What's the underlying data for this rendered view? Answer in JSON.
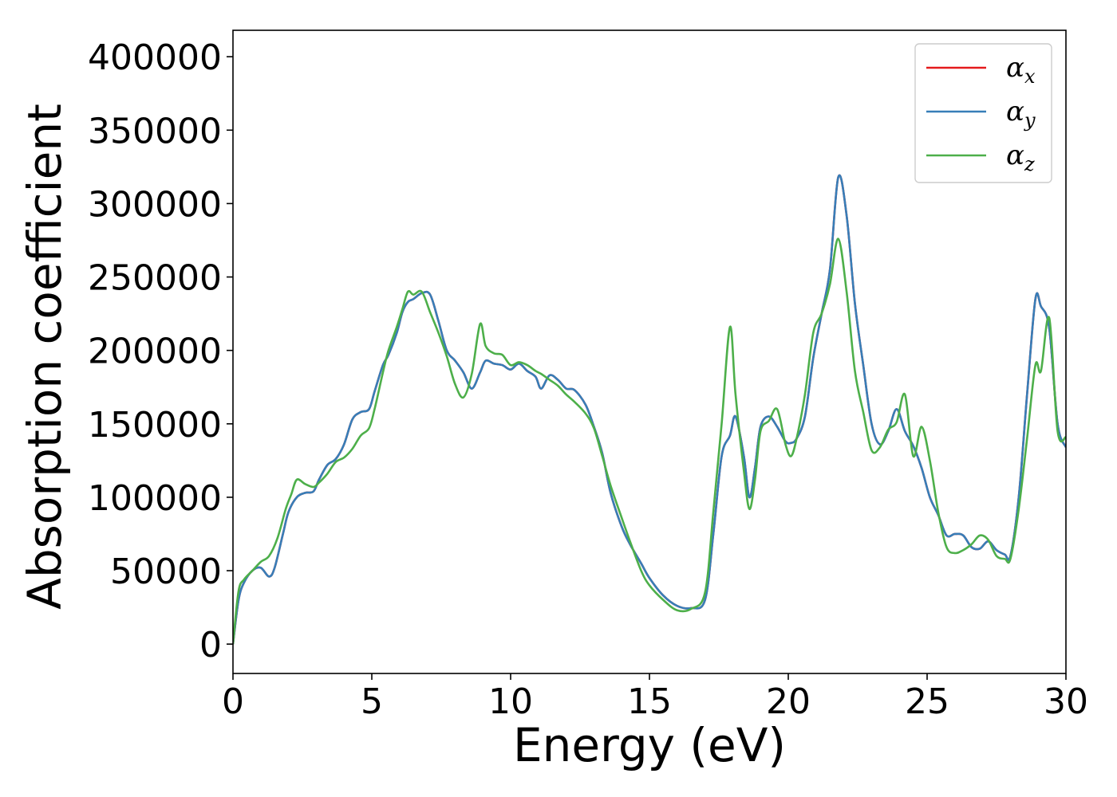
{
  "chart_data": {
    "type": "line",
    "xlabel": "Energy (eV)",
    "ylabel": "Absorption coefficient",
    "xlim": [
      0,
      30
    ],
    "ylim": [
      -20000,
      418000
    ],
    "xticks": [
      0,
      5,
      10,
      15,
      20,
      25,
      30
    ],
    "xtick_labels": [
      "0",
      "5",
      "10",
      "15",
      "20",
      "25",
      "30"
    ],
    "yticks": [
      0,
      50000,
      100000,
      150000,
      200000,
      250000,
      300000,
      350000,
      400000
    ],
    "ytick_labels": [
      "0",
      "50000",
      "100000",
      "150000",
      "200000",
      "250000",
      "300000",
      "350000",
      "400000"
    ],
    "grid": false,
    "legend_position": "top-right",
    "colors": {
      "alpha_x": "#e41a1c",
      "alpha_y": "#377eb8",
      "alpha_z": "#4daf4a",
      "axes": "#000000"
    },
    "series": [
      {
        "name": "α_x",
        "symbol": "α",
        "subscript": "x",
        "color": "#e41a1c",
        "x": [
          0,
          0.2,
          0.4,
          0.7,
          1.0,
          1.3,
          1.5,
          1.8,
          2.0,
          2.3,
          2.6,
          2.9,
          3.1,
          3.4,
          3.7,
          4.0,
          4.3,
          4.6,
          4.9,
          5.1,
          5.4,
          5.6,
          5.9,
          6.1,
          6.3,
          6.5,
          6.8,
          7.1,
          7.4,
          7.7,
          8.0,
          8.3,
          8.6,
          8.9,
          9.1,
          9.4,
          9.7,
          10.0,
          10.3,
          10.6,
          10.9,
          11.1,
          11.4,
          11.7,
          12.0,
          12.3,
          12.7,
          13.0,
          13.3,
          13.6,
          14.0,
          14.3,
          14.7,
          15.0,
          15.5,
          16.0,
          16.5,
          17.0,
          17.3,
          17.6,
          17.9,
          18.1,
          18.4,
          18.6,
          18.8,
          19.0,
          19.3,
          19.6,
          19.9,
          20.1,
          20.3,
          20.6,
          20.9,
          21.2,
          21.5,
          21.8,
          22.1,
          22.4,
          22.7,
          23.0,
          23.3,
          23.6,
          23.9,
          24.2,
          24.5,
          24.8,
          25.1,
          25.4,
          25.7,
          26.0,
          26.3,
          26.6,
          26.9,
          27.2,
          27.5,
          27.8,
          28.0,
          28.3,
          28.6,
          28.9,
          29.1,
          29.4,
          29.7,
          30.0
        ],
        "y": [
          0,
          30000,
          42000,
          50000,
          52000,
          46000,
          52000,
          75000,
          90000,
          100000,
          103000,
          104000,
          112000,
          122000,
          126000,
          136000,
          153000,
          158000,
          160000,
          172000,
          190000,
          197000,
          212000,
          226000,
          233000,
          235000,
          239000,
          238000,
          220000,
          200000,
          193000,
          185000,
          174000,
          185000,
          193000,
          191000,
          190000,
          187000,
          191000,
          186000,
          182000,
          174000,
          183000,
          180000,
          174000,
          173000,
          163000,
          148000,
          130000,
          103000,
          80000,
          68000,
          55000,
          45000,
          33000,
          26000,
          24500,
          30000,
          75000,
          128000,
          142000,
          155000,
          128000,
          100000,
          120000,
          148000,
          155000,
          148000,
          138000,
          137000,
          140000,
          155000,
          195000,
          225000,
          255000,
          318000,
          292000,
          232000,
          190000,
          150000,
          136000,
          145000,
          160000,
          145000,
          135000,
          120000,
          100000,
          88000,
          74000,
          75000,
          74000,
          66000,
          65000,
          70000,
          64000,
          61000,
          60000,
          100000,
          170000,
          235000,
          230000,
          215000,
          150000,
          134000
        ]
      },
      {
        "name": "α_y",
        "symbol": "α",
        "subscript": "y",
        "color": "#377eb8",
        "x": [
          0,
          0.2,
          0.4,
          0.7,
          1.0,
          1.3,
          1.5,
          1.8,
          2.0,
          2.3,
          2.6,
          2.9,
          3.1,
          3.4,
          3.7,
          4.0,
          4.3,
          4.6,
          4.9,
          5.1,
          5.4,
          5.6,
          5.9,
          6.1,
          6.3,
          6.5,
          6.8,
          7.1,
          7.4,
          7.7,
          8.0,
          8.3,
          8.6,
          8.9,
          9.1,
          9.4,
          9.7,
          10.0,
          10.3,
          10.6,
          10.9,
          11.1,
          11.4,
          11.7,
          12.0,
          12.3,
          12.7,
          13.0,
          13.3,
          13.6,
          14.0,
          14.3,
          14.7,
          15.0,
          15.5,
          16.0,
          16.5,
          17.0,
          17.3,
          17.6,
          17.9,
          18.1,
          18.4,
          18.6,
          18.8,
          19.0,
          19.3,
          19.6,
          19.9,
          20.1,
          20.3,
          20.6,
          20.9,
          21.2,
          21.5,
          21.8,
          22.1,
          22.4,
          22.7,
          23.0,
          23.3,
          23.6,
          23.9,
          24.2,
          24.5,
          24.8,
          25.1,
          25.4,
          25.7,
          26.0,
          26.3,
          26.6,
          26.9,
          27.2,
          27.5,
          27.8,
          28.0,
          28.3,
          28.6,
          28.9,
          29.1,
          29.4,
          29.7,
          30.0
        ],
        "y": [
          0,
          30000,
          42000,
          50000,
          52000,
          46000,
          52000,
          75000,
          90000,
          100000,
          103000,
          104000,
          112000,
          122000,
          126000,
          136000,
          153000,
          158000,
          160000,
          172000,
          190000,
          197000,
          212000,
          226000,
          233000,
          235000,
          239000,
          238000,
          220000,
          200000,
          193000,
          185000,
          174000,
          185000,
          193000,
          191000,
          190000,
          187000,
          191000,
          186000,
          182000,
          174000,
          183000,
          180000,
          174000,
          173000,
          163000,
          148000,
          130000,
          103000,
          80000,
          68000,
          55000,
          45000,
          33000,
          26000,
          24500,
          30000,
          75000,
          128000,
          142000,
          155000,
          128000,
          100000,
          120000,
          148000,
          155000,
          148000,
          138000,
          137000,
          140000,
          155000,
          195000,
          225000,
          255000,
          318000,
          292000,
          232000,
          190000,
          150000,
          136000,
          145000,
          160000,
          145000,
          135000,
          120000,
          100000,
          88000,
          74000,
          75000,
          74000,
          66000,
          65000,
          70000,
          64000,
          61000,
          60000,
          100000,
          170000,
          235000,
          230000,
          215000,
          150000,
          134000
        ]
      },
      {
        "name": "α_z",
        "symbol": "α",
        "subscript": "z",
        "color": "#4daf4a",
        "x": [
          0,
          0.2,
          0.4,
          0.7,
          1.0,
          1.3,
          1.6,
          1.9,
          2.1,
          2.3,
          2.6,
          2.9,
          3.1,
          3.4,
          3.7,
          4.0,
          4.3,
          4.6,
          4.9,
          5.1,
          5.4,
          5.6,
          5.9,
          6.1,
          6.3,
          6.5,
          6.8,
          7.1,
          7.4,
          7.7,
          8.0,
          8.3,
          8.6,
          8.9,
          9.1,
          9.4,
          9.7,
          10.0,
          10.3,
          10.6,
          10.9,
          11.1,
          11.4,
          11.7,
          12.0,
          12.3,
          12.7,
          13.0,
          13.3,
          13.6,
          14.0,
          14.3,
          14.7,
          15.0,
          15.5,
          16.0,
          16.5,
          17.0,
          17.3,
          17.6,
          17.9,
          18.1,
          18.4,
          18.6,
          18.8,
          19.0,
          19.3,
          19.6,
          19.9,
          20.1,
          20.3,
          20.6,
          20.9,
          21.2,
          21.5,
          21.8,
          22.1,
          22.4,
          22.7,
          23.0,
          23.3,
          23.6,
          23.9,
          24.2,
          24.5,
          24.8,
          25.1,
          25.4,
          25.7,
          26.0,
          26.3,
          26.6,
          26.9,
          27.2,
          27.5,
          27.8,
          28.0,
          28.3,
          28.6,
          28.9,
          29.1,
          29.4,
          29.7,
          30.0
        ],
        "y": [
          0,
          36000,
          44000,
          50000,
          56000,
          60000,
          72000,
          92000,
          102000,
          112000,
          109000,
          107000,
          110000,
          116000,
          124000,
          127000,
          133000,
          142000,
          147000,
          160000,
          185000,
          200000,
          216000,
          228000,
          240000,
          238000,
          240000,
          226000,
          212000,
          196000,
          177000,
          168000,
          184000,
          218000,
          203000,
          198000,
          197000,
          190000,
          192000,
          190000,
          186000,
          184000,
          180000,
          176000,
          170000,
          165000,
          157000,
          147000,
          128000,
          108000,
          86000,
          70000,
          50000,
          40000,
          30000,
          23000,
          24000,
          35000,
          90000,
          150000,
          216000,
          170000,
          118000,
          92000,
          112000,
          145000,
          152000,
          160000,
          136000,
          128000,
          140000,
          170000,
          212000,
          225000,
          245000,
          276000,
          240000,
          186000,
          158000,
          132000,
          134000,
          146000,
          151000,
          170000,
          128000,
          148000,
          125000,
          90000,
          66000,
          62000,
          64000,
          68000,
          74000,
          71000,
          60000,
          58000,
          58000,
          92000,
          140000,
          190000,
          186000,
          222000,
          145000,
          141000
        ]
      }
    ]
  }
}
